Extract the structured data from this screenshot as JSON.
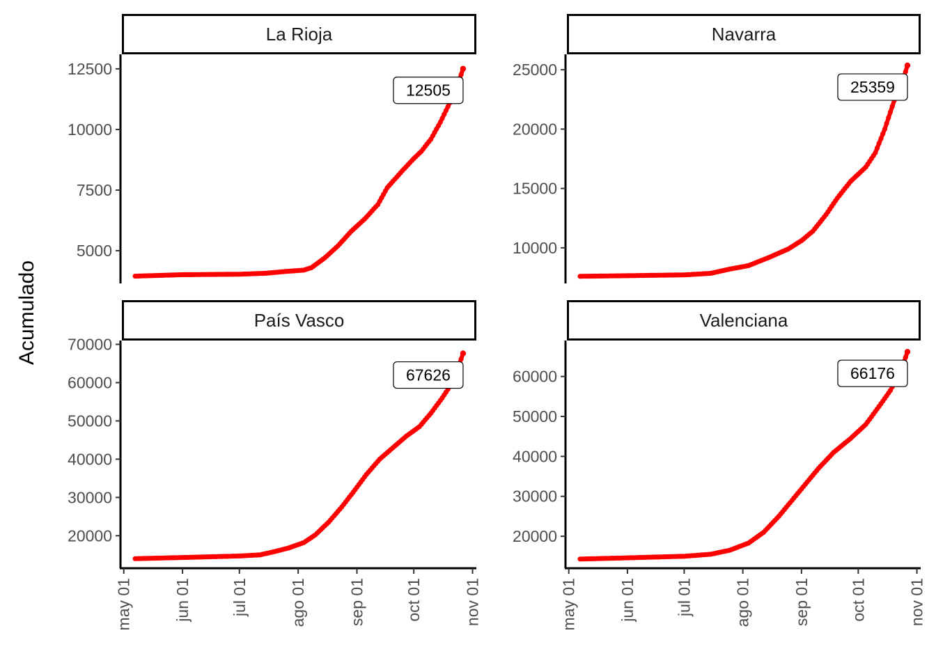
{
  "chart_data": {
    "type": "scatter",
    "ylabel": "Acumulado",
    "xlabel": "",
    "x_tick_labels": [
      "may 01",
      "jun 01",
      "jul 01",
      "ago 01",
      "sep 01",
      "oct 01",
      "nov 01"
    ],
    "x_ticks": [
      "2020-05-01",
      "2020-06-01",
      "2020-07-01",
      "2020-08-01",
      "2020-09-01",
      "2020-10-01",
      "2020-11-01"
    ],
    "xlim": [
      "2020-04-30",
      "2020-11-03"
    ],
    "point_color": "#ff0000",
    "grid": false,
    "legend": "none",
    "panels": [
      {
        "name": "La Rioja",
        "ylim": [
          3650,
          13100
        ],
        "y_ticks": [
          5000,
          7500,
          10000,
          12500
        ],
        "end_label": "12505",
        "points": [
          [
            "2020-05-07",
            3950
          ],
          [
            "2020-06-01",
            4010
          ],
          [
            "2020-07-01",
            4030
          ],
          [
            "2020-07-15",
            4070
          ],
          [
            "2020-07-25",
            4140
          ],
          [
            "2020-08-04",
            4200
          ],
          [
            "2020-08-08",
            4300
          ],
          [
            "2020-08-15",
            4700
          ],
          [
            "2020-08-22",
            5200
          ],
          [
            "2020-08-29",
            5800
          ],
          [
            "2020-09-05",
            6300
          ],
          [
            "2020-09-12",
            6900
          ],
          [
            "2020-09-17",
            7600
          ],
          [
            "2020-09-25",
            8300
          ],
          [
            "2020-10-01",
            8800
          ],
          [
            "2020-10-05",
            9100
          ],
          [
            "2020-10-10",
            9600
          ],
          [
            "2020-10-15",
            10300
          ],
          [
            "2020-10-20",
            11100
          ],
          [
            "2020-10-24",
            11800
          ],
          [
            "2020-10-27",
            12505
          ]
        ]
      },
      {
        "name": "Navarra",
        "ylim": [
          7000,
          26300
        ],
        "y_ticks": [
          10000,
          15000,
          20000,
          25000
        ],
        "end_label": "25359",
        "points": [
          [
            "2020-05-07",
            7600
          ],
          [
            "2020-06-01",
            7650
          ],
          [
            "2020-07-01",
            7720
          ],
          [
            "2020-07-15",
            7850
          ],
          [
            "2020-07-25",
            8200
          ],
          [
            "2020-08-04",
            8500
          ],
          [
            "2020-08-15",
            9200
          ],
          [
            "2020-08-25",
            9900
          ],
          [
            "2020-09-01",
            10600
          ],
          [
            "2020-09-07",
            11400
          ],
          [
            "2020-09-14",
            12800
          ],
          [
            "2020-09-20",
            14200
          ],
          [
            "2020-09-27",
            15600
          ],
          [
            "2020-10-05",
            16800
          ],
          [
            "2020-10-10",
            18000
          ],
          [
            "2020-10-15",
            20000
          ],
          [
            "2020-10-20",
            22400
          ],
          [
            "2020-10-24",
            23800
          ],
          [
            "2020-10-27",
            25359
          ]
        ]
      },
      {
        "name": "País Vasco",
        "ylim": [
          11500,
          71000
        ],
        "y_ticks": [
          20000,
          30000,
          40000,
          50000,
          60000,
          70000
        ],
        "end_label": "67626",
        "points": [
          [
            "2020-05-07",
            14000
          ],
          [
            "2020-06-01",
            14300
          ],
          [
            "2020-07-01",
            14700
          ],
          [
            "2020-07-12",
            15000
          ],
          [
            "2020-07-20",
            15900
          ],
          [
            "2020-07-27",
            16800
          ],
          [
            "2020-08-04",
            18200
          ],
          [
            "2020-08-10",
            20200
          ],
          [
            "2020-08-17",
            23500
          ],
          [
            "2020-08-24",
            27500
          ],
          [
            "2020-08-31",
            32000
          ],
          [
            "2020-09-06",
            36000
          ],
          [
            "2020-09-13",
            40000
          ],
          [
            "2020-09-20",
            43000
          ],
          [
            "2020-09-27",
            46000
          ],
          [
            "2020-10-04",
            48500
          ],
          [
            "2020-10-10",
            52000
          ],
          [
            "2020-10-16",
            56000
          ],
          [
            "2020-10-22",
            60500
          ],
          [
            "2020-10-27",
            67626
          ]
        ]
      },
      {
        "name": "Valenciana",
        "ylim": [
          12000,
          69000
        ],
        "y_ticks": [
          20000,
          30000,
          40000,
          50000,
          60000
        ],
        "end_label": "66176",
        "points": [
          [
            "2020-05-07",
            14300
          ],
          [
            "2020-06-01",
            14600
          ],
          [
            "2020-07-01",
            15000
          ],
          [
            "2020-07-15",
            15500
          ],
          [
            "2020-07-25",
            16500
          ],
          [
            "2020-08-04",
            18300
          ],
          [
            "2020-08-12",
            21000
          ],
          [
            "2020-08-20",
            25000
          ],
          [
            "2020-08-27",
            29000
          ],
          [
            "2020-09-03",
            33000
          ],
          [
            "2020-09-10",
            37000
          ],
          [
            "2020-09-18",
            41000
          ],
          [
            "2020-09-27",
            44500
          ],
          [
            "2020-10-05",
            48000
          ],
          [
            "2020-10-12",
            52500
          ],
          [
            "2020-10-18",
            56500
          ],
          [
            "2020-10-24",
            62000
          ],
          [
            "2020-10-27",
            66176
          ]
        ]
      }
    ]
  }
}
